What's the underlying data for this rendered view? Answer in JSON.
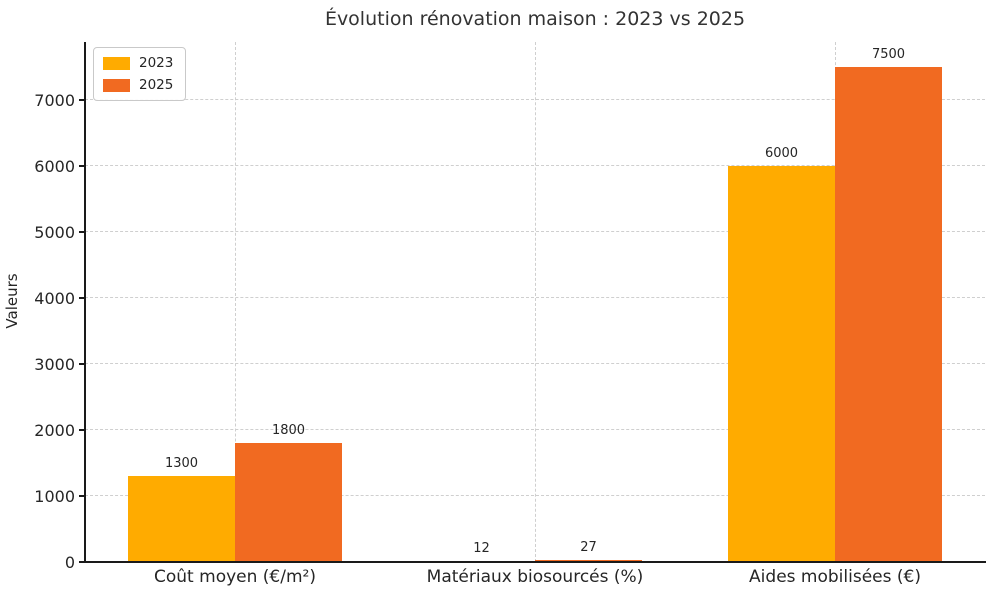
{
  "chart_data": {
    "type": "bar",
    "title": "Évolution rénovation maison : 2023 vs 2025",
    "xlabel": "",
    "ylabel": "Valeurs",
    "categories": [
      "Coût moyen (€/m²)",
      "Matériaux biosourcés (%)",
      "Aides mobilisées (€)"
    ],
    "series": [
      {
        "name": "2023",
        "color": "#FFAB00",
        "values": [
          1300,
          12,
          6000
        ]
      },
      {
        "name": "2025",
        "color": "#F16A21",
        "values": [
          1800,
          27,
          7500
        ]
      }
    ],
    "yticks": [
      0,
      1000,
      2000,
      3000,
      4000,
      5000,
      6000,
      7000
    ],
    "ylim": [
      0,
      7875
    ],
    "grid": "dashed",
    "legend_position": "upper-left",
    "value_labels": true
  }
}
